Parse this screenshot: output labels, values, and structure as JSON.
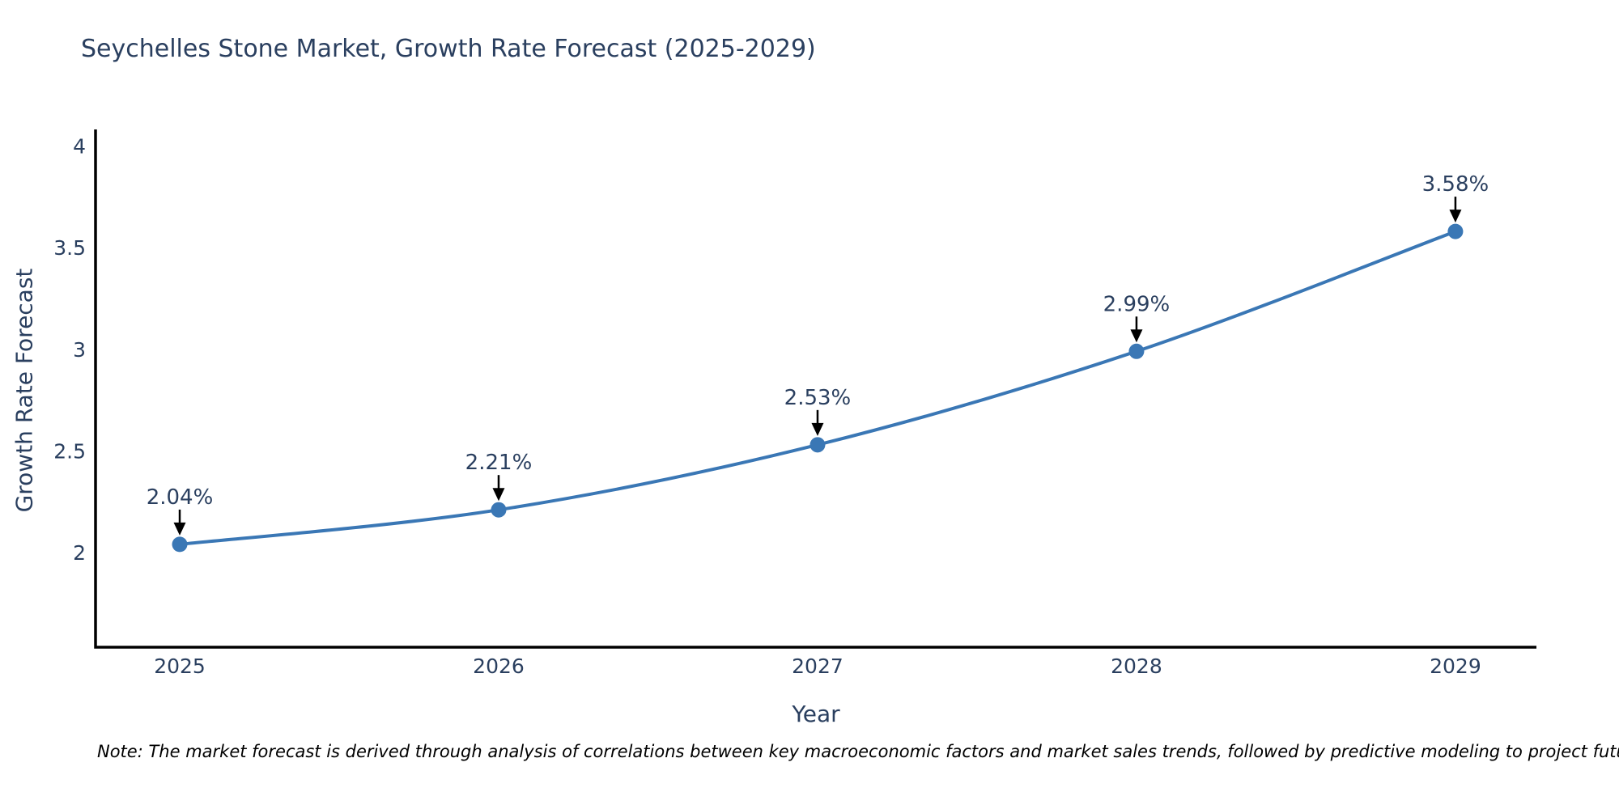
{
  "chart_data": {
    "type": "line",
    "title": "Seychelles Stone Market, Growth Rate Forecast (2025-2029)",
    "xlabel": "Year",
    "ylabel": "Growth Rate Forecast",
    "x": [
      2025,
      2026,
      2027,
      2028,
      2029
    ],
    "y": [
      2.04,
      2.21,
      2.53,
      2.99,
      3.58
    ],
    "point_labels": [
      "2.04%",
      "2.21%",
      "2.53%",
      "2.99%",
      "3.58%"
    ],
    "x_tick_labels": [
      "2025",
      "2026",
      "2027",
      "2028",
      "2029"
    ],
    "y_ticks": [
      2,
      2.5,
      3,
      3.5,
      4
    ],
    "y_tick_labels": [
      "2",
      "2.5",
      "3",
      "3.5",
      "4"
    ],
    "xlim": [
      2024.736,
      2029.254
    ],
    "ylim": [
      1.534,
      4.082
    ],
    "grid": false,
    "legend": false,
    "line_shape": "spline",
    "colors": {
      "line": "#3A77B5",
      "marker": "#3A77B5",
      "axis": "#000000",
      "tick_text": "#2a3f5f",
      "annotation_text": "#2a3f5f",
      "annotation_arrow": "#000000"
    },
    "note": "Note: The market forecast is derived through analysis of correlations between key macroeconomic factors and market sales trends, followed by predictive modeling to project future sales"
  }
}
